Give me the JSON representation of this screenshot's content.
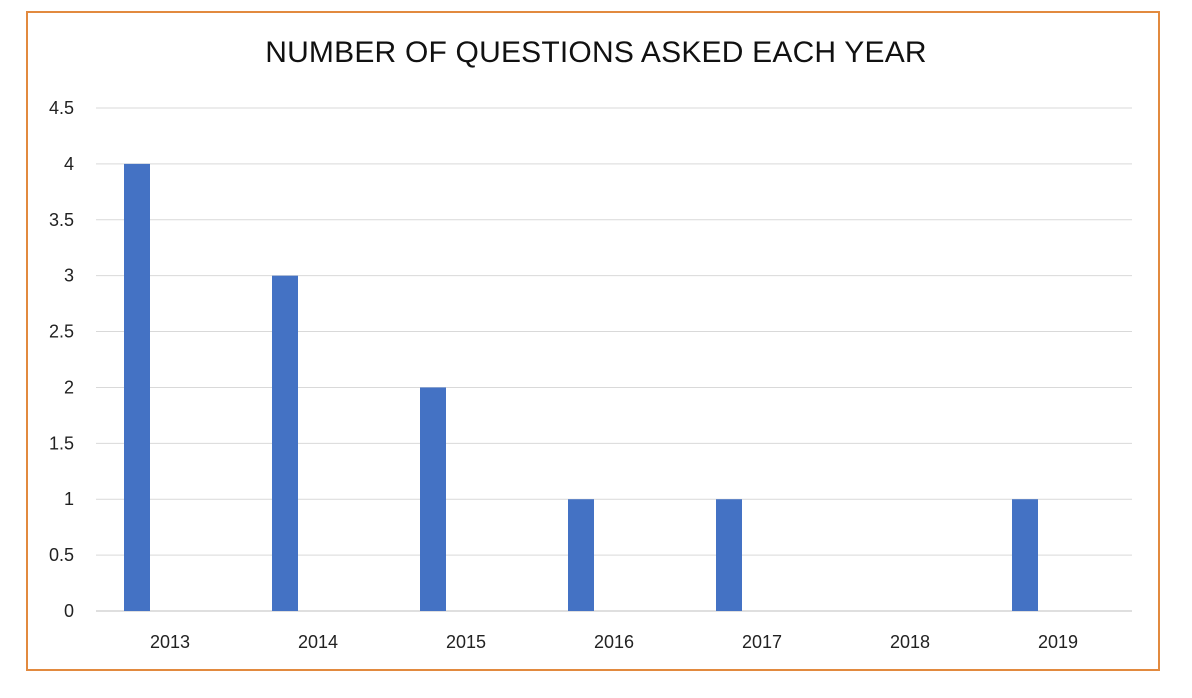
{
  "chart_data": {
    "type": "bar",
    "title": "NUMBER OF QUESTIONS ASKED EACH YEAR",
    "categories": [
      "2013",
      "2014",
      "2015",
      "2016",
      "2017",
      "2018",
      "2019"
    ],
    "series": [
      {
        "values": [
          4,
          3,
          2,
          1,
          1,
          0,
          1
        ]
      }
    ],
    "y_ticks": [
      "0",
      "0.5",
      "1",
      "1.5",
      "2",
      "2.5",
      "3",
      "3.5",
      "4",
      "4.5"
    ],
    "ylim": [
      0,
      4.5
    ],
    "grid": true,
    "legend": "none",
    "bar_color": "#4472C4",
    "frame_color": "#E28A3F"
  }
}
